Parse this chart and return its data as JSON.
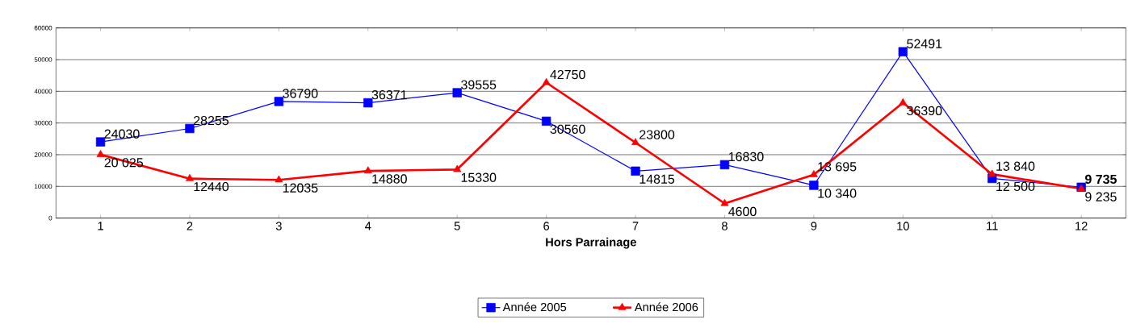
{
  "chart_data": {
    "type": "line",
    "xlabel": "Hors Parrainage",
    "categories": [
      "1",
      "2",
      "3",
      "4",
      "5",
      "6",
      "7",
      "8",
      "9",
      "10",
      "11",
      "12"
    ],
    "series": [
      {
        "name": "Année 2005",
        "color": "#0000ff",
        "marker": "square",
        "values": [
          24030,
          28255,
          36790,
          36371,
          39555,
          30560,
          14815,
          16830,
          10340,
          52491,
          12500,
          9735
        ],
        "value_labels": [
          "24030",
          "28255",
          "36790",
          "36371",
          "39555",
          "30560",
          "14815",
          "16830",
          "10 340",
          "52491",
          "12 500",
          "**9 735**"
        ]
      },
      {
        "name": "Année 2006",
        "color": "#ff0000",
        "marker": "triangle",
        "values": [
          20025,
          12440,
          12035,
          14880,
          15330,
          42750,
          23800,
          4600,
          13695,
          36390,
          13840,
          9235
        ],
        "value_labels": [
          "20 025",
          "12440",
          "12035",
          "14880",
          "15330",
          "42750",
          "23800",
          "4600",
          "13 695",
          "36390",
          "13 840",
          "9 235"
        ]
      }
    ],
    "ylim": [
      0,
      60000
    ],
    "yticks": [
      0,
      10000,
      20000,
      30000,
      40000,
      50000,
      60000
    ],
    "grid": "y",
    "legend": "bottom"
  }
}
